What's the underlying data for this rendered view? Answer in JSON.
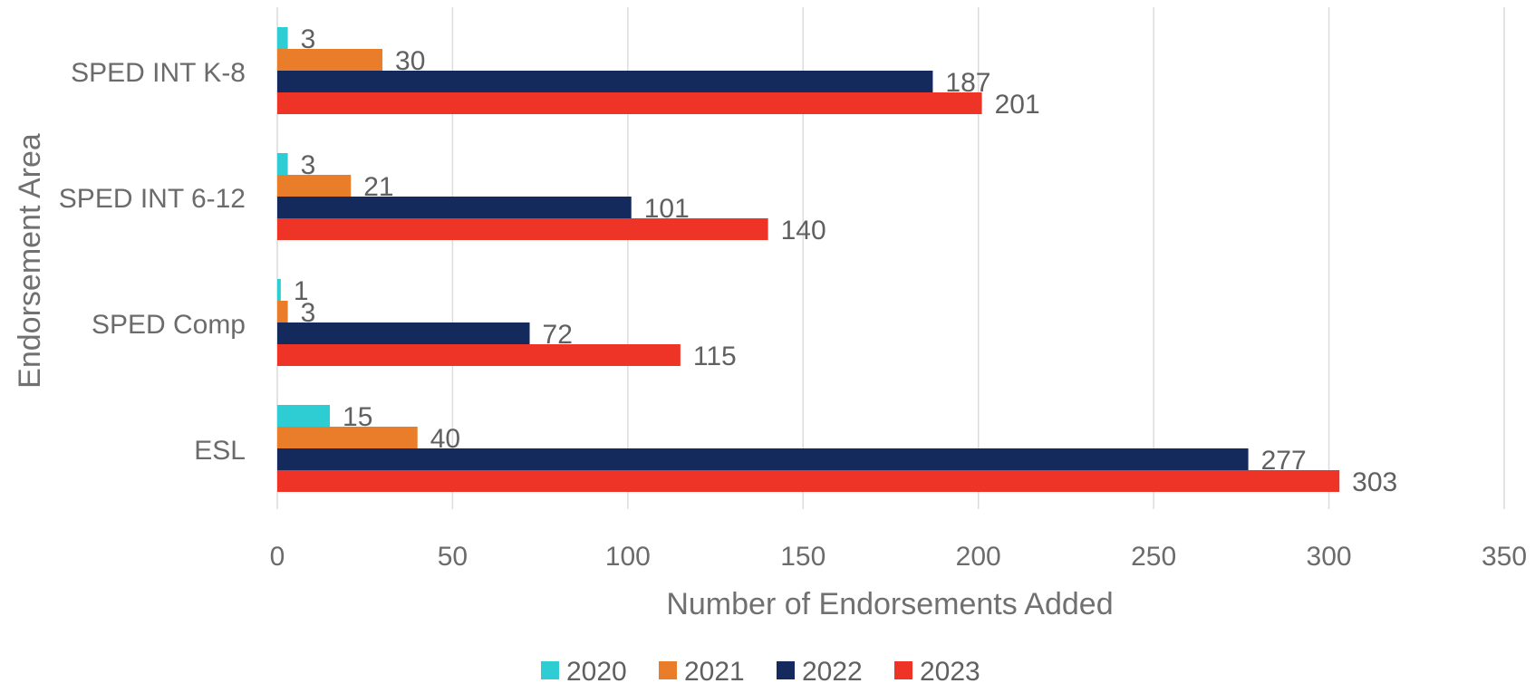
{
  "chart_data": {
    "type": "bar",
    "orientation": "horizontal",
    "categories": [
      "SPED INT K-8",
      "SPED INT 6-12",
      "SPED Comp",
      "ESL"
    ],
    "series": [
      {
        "name": "2020",
        "color": "#2ecdd3",
        "values": [
          3,
          3,
          1,
          15
        ]
      },
      {
        "name": "2021",
        "color": "#ea7d2a",
        "values": [
          30,
          21,
          3,
          40
        ]
      },
      {
        "name": "2022",
        "color": "#142a5c",
        "values": [
          187,
          101,
          72,
          277
        ]
      },
      {
        "name": "2023",
        "color": "#ee3427",
        "values": [
          201,
          140,
          115,
          303
        ]
      }
    ],
    "xlabel": "Number of Endorsements Added",
    "ylabel": "Endorsement Area",
    "xlim": [
      0,
      350
    ],
    "xticks": [
      0,
      50,
      100,
      150,
      200,
      250,
      300,
      350
    ],
    "grid": "vertical",
    "legend_position": "bottom"
  }
}
